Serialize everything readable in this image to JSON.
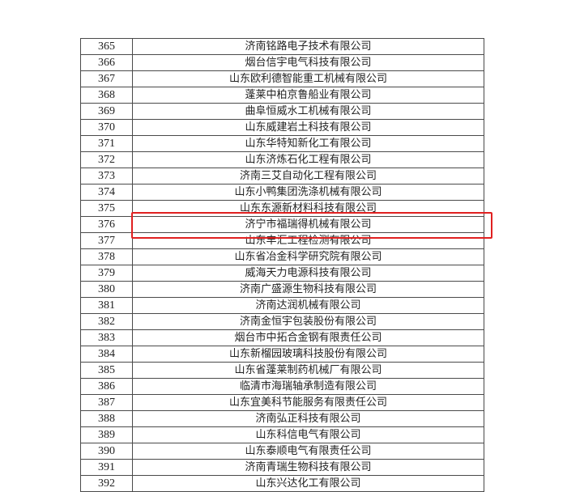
{
  "rows": [
    {
      "no": "365",
      "name": "济南铭路电子技术有限公司"
    },
    {
      "no": "366",
      "name": "烟台信宇电气科技有限公司"
    },
    {
      "no": "367",
      "name": "山东欧利德智能重工机械有限公司"
    },
    {
      "no": "368",
      "name": "蓬莱中柏京鲁船业有限公司"
    },
    {
      "no": "369",
      "name": "曲阜恒威水工机械有限公司"
    },
    {
      "no": "370",
      "name": "山东威建岩土科技有限公司"
    },
    {
      "no": "371",
      "name": "山东华特知新化工有限公司"
    },
    {
      "no": "372",
      "name": "山东济炼石化工程有限公司"
    },
    {
      "no": "373",
      "name": "济南三艾自动化工程有限公司"
    },
    {
      "no": "374",
      "name": "山东小鸭集团洗涤机械有限公司"
    },
    {
      "no": "375",
      "name": "山东东源新材料科技有限公司"
    },
    {
      "no": "376",
      "name": "济宁市福瑞得机械有限公司"
    },
    {
      "no": "377",
      "name": "山东丰汇工程检测有限公司"
    },
    {
      "no": "378",
      "name": "山东省冶金科学研究院有限公司"
    },
    {
      "no": "379",
      "name": "威海天力电源科技有限公司"
    },
    {
      "no": "380",
      "name": "济南广盛源生物科技有限公司"
    },
    {
      "no": "381",
      "name": "济南达润机械有限公司"
    },
    {
      "no": "382",
      "name": "济南金恒宇包装股份有限公司"
    },
    {
      "no": "383",
      "name": "烟台市中拓合金钢有限责任公司"
    },
    {
      "no": "384",
      "name": "山东新榴园玻璃科技股份有限公司"
    },
    {
      "no": "385",
      "name": "山东省蓬莱制药机械厂有限公司"
    },
    {
      "no": "386",
      "name": "临清市海瑞轴承制造有限公司"
    },
    {
      "no": "387",
      "name": "山东宜美科节能服务有限责任公司"
    },
    {
      "no": "388",
      "name": "济南弘正科技有限公司"
    },
    {
      "no": "389",
      "name": "山东科信电气有限公司"
    },
    {
      "no": "390",
      "name": "山东泰顺电气有限责任公司"
    },
    {
      "no": "391",
      "name": "济南青瑞生物科技有限公司"
    },
    {
      "no": "392",
      "name": "山东兴达化工有限公司"
    }
  ],
  "highlighted_row": "376",
  "colors": {
    "highlight": "#e02020",
    "border": "#4a4a4a"
  }
}
